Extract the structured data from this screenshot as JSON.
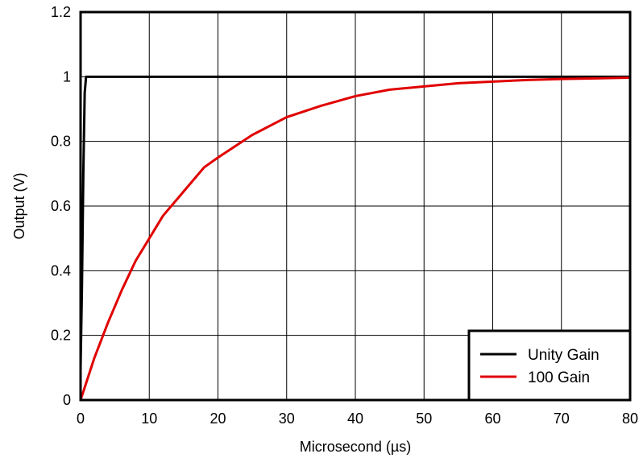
{
  "chart_data": {
    "type": "line",
    "xlabel": "Microsecond (µs)",
    "ylabel": "Output (V)",
    "xlim": [
      0,
      80
    ],
    "ylim": [
      0,
      1.2
    ],
    "x_ticks": [
      "0",
      "10",
      "20",
      "30",
      "40",
      "50",
      "60",
      "70",
      "80"
    ],
    "y_ticks": [
      "0",
      "0.2",
      "0.4",
      "0.6",
      "0.8",
      "1",
      "1.2"
    ],
    "grid": true,
    "legend_position": "bottom-right",
    "series": [
      {
        "name": "Unity Gain",
        "color": "#000000",
        "x": [
          0,
          0.2,
          0.4,
          0.6,
          0.8,
          1.0,
          80
        ],
        "y": [
          0.1,
          0.35,
          0.7,
          0.95,
          1.0,
          1.0,
          1.0
        ]
      },
      {
        "name": "100 Gain",
        "color": "#e00000",
        "x": [
          0,
          2,
          4,
          6,
          8,
          10,
          12,
          14,
          16,
          18,
          20,
          25,
          30,
          35,
          40,
          45,
          50,
          55,
          60,
          65,
          70,
          75,
          80
        ],
        "y": [
          0,
          0.13,
          0.24,
          0.34,
          0.43,
          0.5,
          0.57,
          0.62,
          0.67,
          0.72,
          0.75,
          0.82,
          0.875,
          0.91,
          0.94,
          0.96,
          0.97,
          0.98,
          0.985,
          0.99,
          0.993,
          0.995,
          0.997
        ]
      }
    ]
  }
}
